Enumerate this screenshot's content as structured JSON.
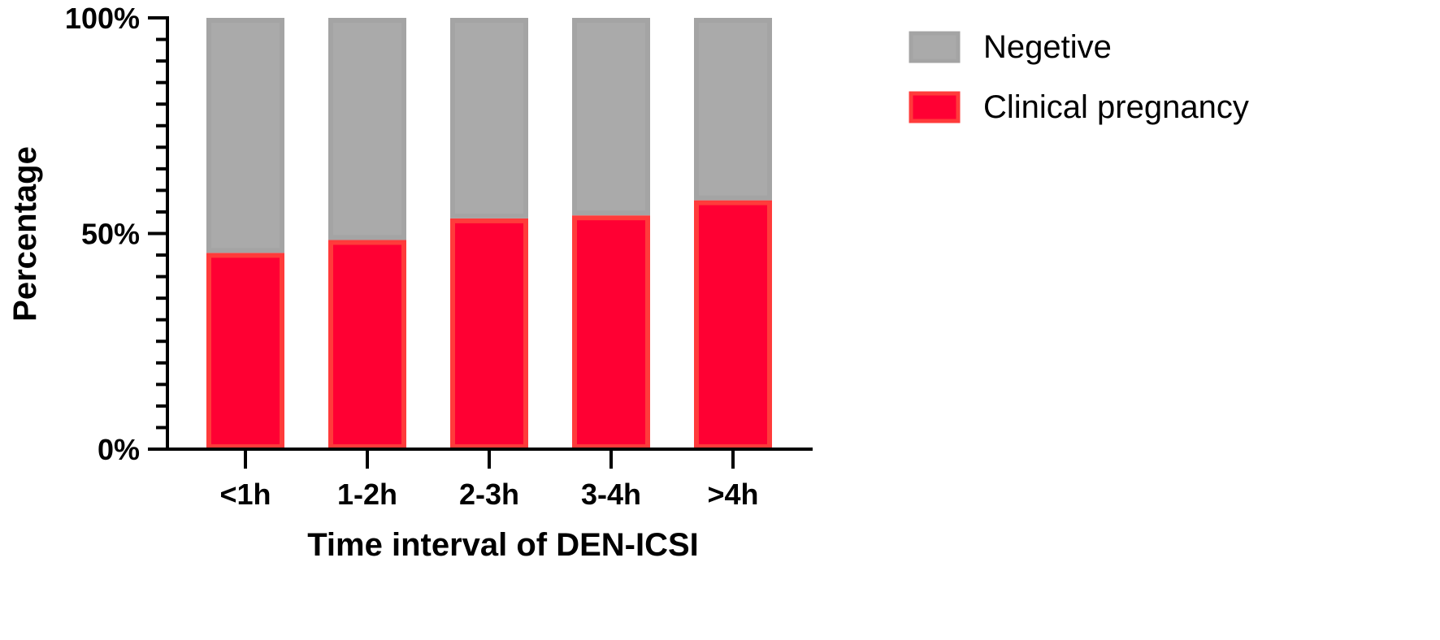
{
  "chart_data": {
    "type": "bar",
    "stacked": true,
    "categories": [
      "<1h",
      "1-2h",
      "2-3h",
      "3-4h",
      ">4h"
    ],
    "series": [
      {
        "name": "Clinical pregnancy",
        "values": [
          45.5,
          48.5,
          53.5,
          54.2,
          57.7
        ]
      },
      {
        "name": "Negetive",
        "values": [
          54.5,
          51.5,
          46.5,
          45.8,
          42.3
        ]
      }
    ],
    "title": "",
    "xlabel": "Time interval of DEN-ICSI",
    "ylabel": "Percentage",
    "ylim": [
      0,
      100
    ],
    "yticks": [
      {
        "value": 0,
        "label": "0%"
      },
      {
        "value": 50,
        "label": "50%"
      },
      {
        "value": 100,
        "label": "100%"
      }
    ],
    "minor_tick_step": 5,
    "grid": false,
    "legend_position": "top-right",
    "legend": [
      {
        "name": "Negetive",
        "fill": "#aaaaaa",
        "stroke": "#a4a4a4"
      },
      {
        "name": "Clinical pregnancy",
        "fill": "#ff0033",
        "stroke": "#ff3b3b"
      }
    ]
  }
}
